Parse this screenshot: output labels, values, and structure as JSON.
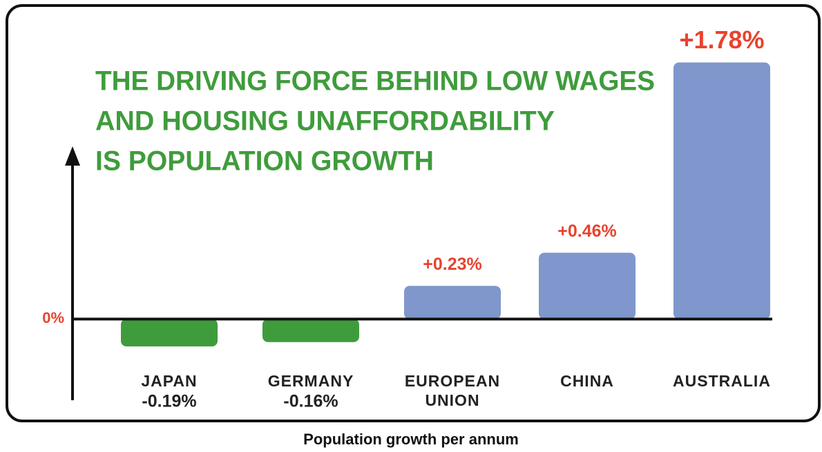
{
  "chart_data": {
    "type": "bar",
    "title": [
      "THE DRIVING FORCE BEHIND LOW WAGES",
      "AND HOUSING UNAFFORDABILITY",
      "IS POPULATION GROWTH"
    ],
    "caption": "Population growth per annum",
    "categories": [
      "JAPAN",
      "GERMANY",
      "EUROPEAN UNION",
      "CHINA",
      "AUSTRALIA"
    ],
    "values": [
      -0.19,
      -0.16,
      0.23,
      0.46,
      1.78
    ],
    "value_labels": [
      "-0.19%",
      "-0.16%",
      "+0.23%",
      "+0.46%",
      "+1.78%"
    ],
    "positive_color": "#7f97cc",
    "negative_color": "#3f9c3c",
    "ylim": [
      -0.3,
      1.95
    ],
    "yticks": [
      {
        "value": 0,
        "label": "0%"
      }
    ]
  }
}
